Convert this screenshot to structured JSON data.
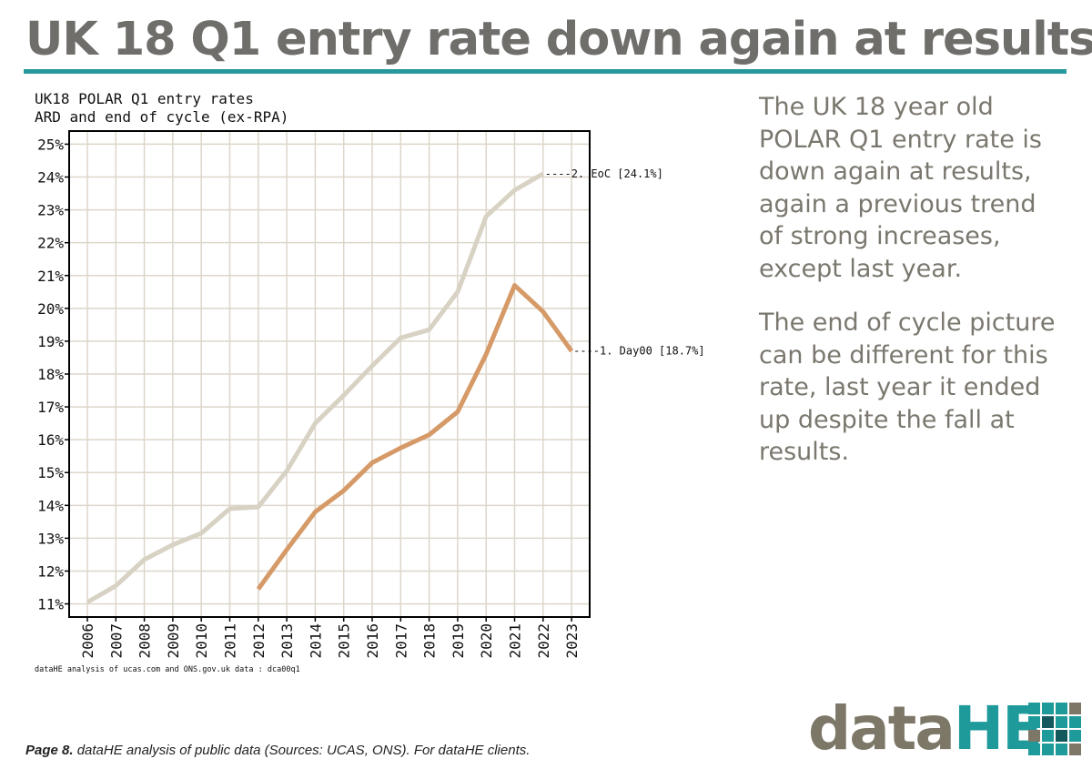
{
  "page": {
    "title": "UK 18 Q1 entry rate down again at results",
    "footer_page": "Page 8.",
    "footer_text": "dataHE analysis of public data (Sources: UCAS, ONS). For dataHE clients.",
    "logo_data": "data",
    "logo_he": "HE"
  },
  "side_text": {
    "para1": "The UK 18 year old POLAR Q1 entry rate is down again at results, again a previous trend of strong increases, except last year.",
    "para2": "The end of cycle picture can be different for this rate, last year it ended up despite the fall at results."
  },
  "colors": {
    "title": "#6f6e6b",
    "rule": "#27999d",
    "eoc_line": "#d8d2c4",
    "day0_line": "#d59a67",
    "grid": "#ddd6ca"
  },
  "chart_data": {
    "type": "line",
    "title": "UK18 POLAR Q1 entry rates",
    "subtitle": "ARD and end of cycle (ex-RPA)",
    "source": "dataHE analysis of ucas.com and ONS.gov.uk data : dca00q1",
    "xlabel": "",
    "ylabel": "",
    "ylim": [
      10.6,
      25.4
    ],
    "y_ticks": [
      11,
      12,
      13,
      14,
      15,
      16,
      17,
      18,
      19,
      20,
      21,
      22,
      23,
      24,
      25
    ],
    "y_tick_labels": [
      "11%",
      "12%",
      "13%",
      "14%",
      "15%",
      "16%",
      "17%",
      "18%",
      "19%",
      "20%",
      "21%",
      "22%",
      "23%",
      "24%",
      "25%"
    ],
    "categories": [
      "2006",
      "2007",
      "2008",
      "2009",
      "2010",
      "2011",
      "2012",
      "2013",
      "2014",
      "2015",
      "2016",
      "2017",
      "2018",
      "2019",
      "2020",
      "2021",
      "2022",
      "2023"
    ],
    "series": [
      {
        "name": "EoC",
        "label": "2. EoC [24.1%]",
        "color": "#d8d2c4",
        "values": [
          11.05,
          11.55,
          12.35,
          12.8,
          13.15,
          13.9,
          13.95,
          15.05,
          16.5,
          17.35,
          18.25,
          19.1,
          19.35,
          20.5,
          22.8,
          23.6,
          24.1,
          null
        ]
      },
      {
        "name": "Day00",
        "label": "1. Day00 [18.7%]",
        "color": "#d59a67",
        "values": [
          null,
          null,
          null,
          null,
          null,
          null,
          11.45,
          12.65,
          13.8,
          14.45,
          15.3,
          15.75,
          16.15,
          16.85,
          18.6,
          20.7,
          19.9,
          18.7
        ]
      }
    ]
  }
}
